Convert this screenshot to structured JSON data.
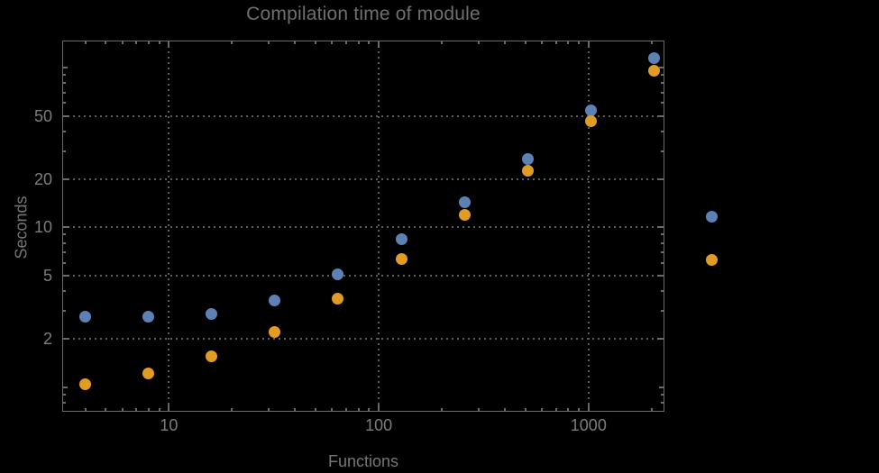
{
  "chart_data": {
    "type": "scatter",
    "title": "Compilation time of module",
    "xlabel": "Functions",
    "ylabel": "Seconds",
    "x_scale": "log",
    "y_scale": "log",
    "xlim": [
      3.1,
      2300
    ],
    "ylim": [
      0.7,
      148
    ],
    "grid": "dotted gridlines at labeled ticks only",
    "legend_position": "right of plot area, color markers only (no visible label text)",
    "x_ticks_labeled": [
      10,
      100,
      1000
    ],
    "x_ticks_minor": [
      4,
      5,
      6,
      7,
      8,
      9,
      20,
      30,
      40,
      50,
      60,
      70,
      80,
      90,
      200,
      300,
      400,
      500,
      600,
      700,
      800,
      900,
      2000
    ],
    "y_ticks_labeled": [
      2,
      5,
      10,
      20,
      50
    ],
    "y_ticks_medium_unlabeled": [
      1,
      100
    ],
    "y_ticks_minor": [
      0.8,
      0.9,
      3,
      4,
      6,
      7,
      8,
      9,
      30,
      40,
      60,
      70,
      80,
      90
    ],
    "x": [
      4,
      8,
      16,
      32,
      64,
      128,
      256,
      512,
      1024,
      2048
    ],
    "series": [
      {
        "name": "series-blue",
        "color": "#5E81B5",
        "values": [
          2.75,
          2.75,
          2.87,
          3.5,
          5.1,
          8.4,
          14.4,
          26.7,
          54,
          115
        ]
      },
      {
        "name": "series-orange",
        "color": "#E19C24",
        "values": [
          1.04,
          1.21,
          1.55,
          2.2,
          3.57,
          6.35,
          12,
          22.7,
          46,
          96
        ]
      }
    ]
  },
  "colors": {
    "background": "#000000",
    "frame": "#6a6a6a",
    "gridline": "#5d5d5d",
    "tick_label_text": "#7d7d7d",
    "axis_title_text": "#767676",
    "chart_title_text": "#6f6f6f"
  }
}
